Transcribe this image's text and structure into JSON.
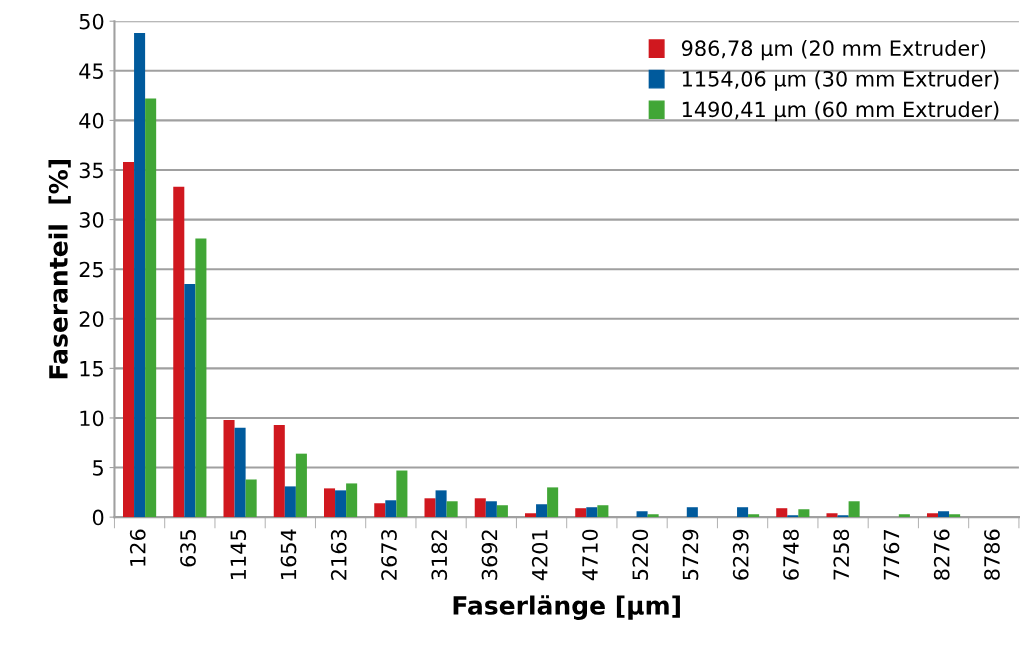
{
  "chart_data": {
    "type": "bar",
    "xlabel": "Faserlänge [µm]",
    "ylabel": "Faseranteil  [%]",
    "categories": [
      "126",
      "635",
      "1145",
      "1654",
      "2163",
      "2673",
      "3182",
      "3692",
      "4201",
      "4710",
      "5220",
      "5729",
      "6239",
      "6748",
      "7258",
      "7767",
      "8276",
      "8786"
    ],
    "series": [
      {
        "name": "986,78 µm (20 mm Extruder)",
        "color": "#d0181f",
        "values": [
          35.8,
          33.3,
          9.8,
          9.3,
          2.9,
          1.4,
          1.9,
          1.9,
          0.4,
          0.9,
          null,
          null,
          null,
          0.9,
          0.4,
          null,
          0.4,
          null
        ]
      },
      {
        "name": "1154,06 µm (30 mm Extruder)",
        "color": "#005a9c",
        "values": [
          48.8,
          23.5,
          9.0,
          3.1,
          2.7,
          1.7,
          2.7,
          1.6,
          1.3,
          1.0,
          0.6,
          1.0,
          1.0,
          0.2,
          0.2,
          null,
          0.6,
          null
        ]
      },
      {
        "name": "1490,41 µm (60 mm Extruder)",
        "color": "#41a636",
        "values": [
          42.2,
          28.1,
          3.8,
          6.4,
          3.4,
          4.7,
          1.6,
          1.2,
          3.0,
          1.2,
          0.3,
          null,
          0.3,
          0.8,
          1.6,
          0.3,
          0.3,
          null
        ]
      }
    ],
    "ylim": [
      0,
      50
    ],
    "yticks": [
      0,
      5,
      10,
      15,
      20,
      25,
      30,
      35,
      40,
      45,
      50
    ],
    "grid": "y",
    "legend": "top right"
  }
}
